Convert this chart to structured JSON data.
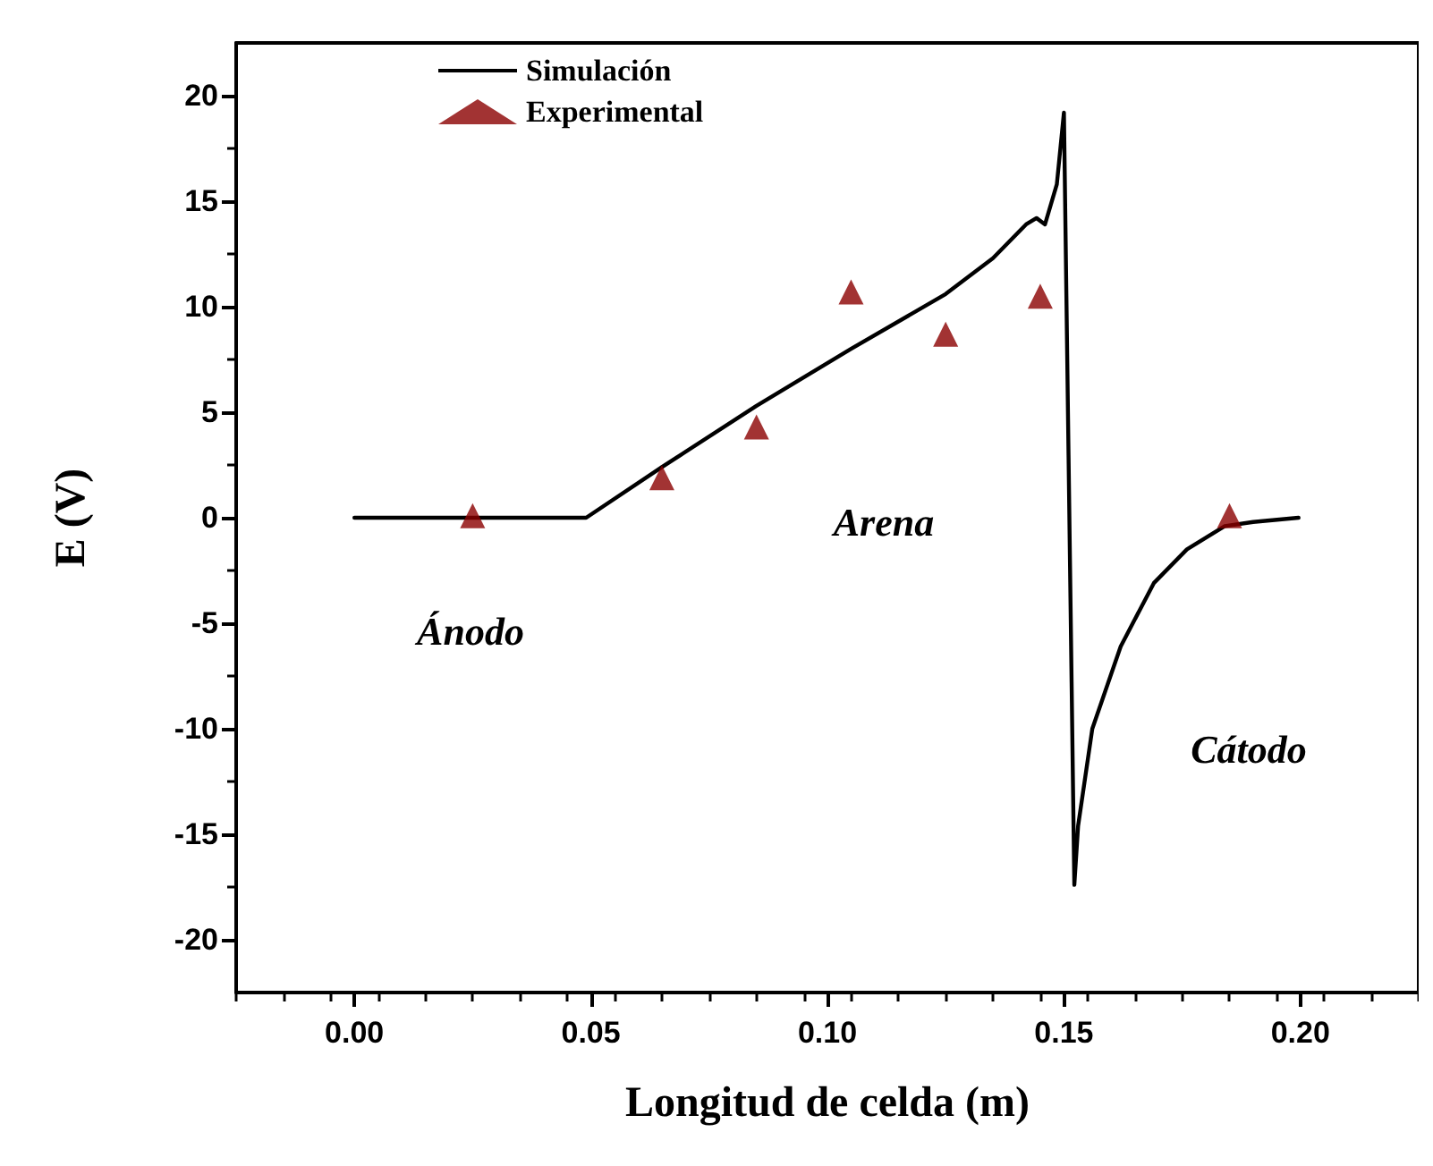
{
  "chart_data": {
    "type": "line",
    "xlabel": "Longitud de celda (m)",
    "ylabel": "E (V)",
    "xlim": [
      -0.025,
      0.225
    ],
    "xticks": [
      {
        "value": 0,
        "label": "0.00"
      },
      0.05,
      {
        "value": 0.1,
        "label": "0.10"
      },
      0.15,
      {
        "value": 0.2,
        "label": "0.20"
      }
    ],
    "ylim": [
      -22.5,
      22.5
    ],
    "yticks": [
      -20,
      -15,
      -10,
      -5,
      0,
      5,
      10,
      15,
      20
    ],
    "grid": false,
    "legend": "top left",
    "series": [
      {
        "name": "Simulación",
        "color": "#000000",
        "marker": "none",
        "line_style": "solid",
        "x": [
          0,
          0.049,
          0.065,
          0.085,
          0.105,
          0.125,
          0.135,
          0.142,
          0.1442,
          0.146,
          0.1485,
          0.15,
          0.1522,
          0.153,
          0.156,
          0.162,
          0.169,
          0.176,
          0.184,
          0.19,
          0.1996
        ],
        "values": [
          0,
          0,
          2.4,
          5.3,
          8,
          10.6,
          12.3,
          13.9,
          14.2,
          13.9,
          15.8,
          19.2,
          -17.4,
          -14.6,
          -10,
          -6.1,
          -3.1,
          -1.5,
          -0.4,
          -0.2,
          0
        ]
      },
      {
        "name": "Experimental",
        "type": "scatter",
        "color": "#8b0000",
        "marker": "triangle",
        "x": [
          0.025,
          0.065,
          0.085,
          0.105,
          0.125,
          0.145,
          0.185
        ],
        "values": [
          0.1,
          1.9,
          4.3,
          10.7,
          8.7,
          10.5,
          0.1
        ]
      }
    ],
    "annotations": [
      "Ánodo",
      "Arena",
      "Cátodo"
    ]
  }
}
